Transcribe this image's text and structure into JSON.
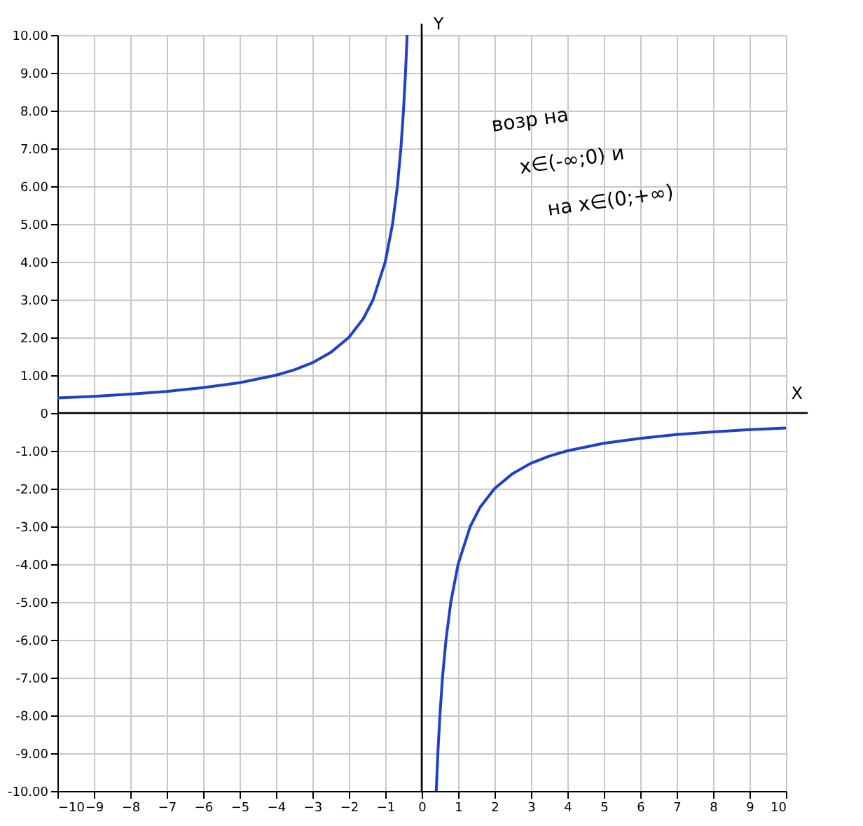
{
  "chart_data": {
    "type": "line",
    "xlabel": "X",
    "ylabel": "Y",
    "series": [
      {
        "color": "#2040c8",
        "x": [
          -10,
          -9,
          -8,
          -7,
          -6,
          -5,
          -4,
          -3.5,
          -3,
          -2.5,
          -2,
          -1.6,
          -1.333,
          -1,
          -0.8,
          -0.667,
          -0.571,
          -0.5,
          -0.444,
          -0.4
        ],
        "values": [
          0.4,
          0.44,
          0.5,
          0.57,
          0.67,
          0.8,
          1,
          1.14,
          1.33,
          1.6,
          2,
          2.5,
          3,
          4,
          5,
          6,
          7,
          8,
          9,
          10
        ]
      },
      {
        "color": "#2040c8",
        "x": [
          0.4,
          0.444,
          0.5,
          0.571,
          0.667,
          0.8,
          1,
          1.333,
          1.6,
          2,
          2.5,
          3,
          3.5,
          4,
          5,
          6,
          7,
          8,
          9,
          10
        ],
        "values": [
          -10,
          -9,
          -8,
          -7,
          -6,
          -5,
          -4,
          -3,
          -2.5,
          -2,
          -1.6,
          -1.33,
          -1.14,
          -1,
          -0.8,
          -0.67,
          -0.57,
          -0.5,
          -0.44,
          -0.4
        ]
      }
    ],
    "xlim": [
      -10,
      10
    ],
    "ylim": [
      -10,
      10
    ],
    "xticks": [
      -10,
      -9,
      -8,
      -7,
      -6,
      -5,
      -4,
      -3,
      -2,
      -1,
      0,
      1,
      2,
      3,
      4,
      5,
      6,
      7,
      8,
      9,
      10
    ],
    "yticks": [
      {
        "value": -10,
        "label": "-10.00"
      },
      {
        "value": -9,
        "label": "-9.00"
      },
      {
        "value": -8,
        "label": "-8.00"
      },
      {
        "value": -7,
        "label": "-7.00"
      },
      {
        "value": -6,
        "label": "-6.00"
      },
      {
        "value": -5,
        "label": "-5.00"
      },
      {
        "value": -4,
        "label": "-4.00"
      },
      {
        "value": -3,
        "label": "-3.00"
      },
      {
        "value": -2,
        "label": "-2.00"
      },
      {
        "value": -1,
        "label": "-1.00"
      },
      0,
      {
        "value": 1,
        "label": "1.00"
      },
      {
        "value": 2,
        "label": "2.00"
      },
      {
        "value": 3,
        "label": "3.00"
      },
      {
        "value": 4,
        "label": "4.00"
      },
      {
        "value": 5,
        "label": "5.00"
      },
      {
        "value": 6,
        "label": "6.00"
      },
      {
        "value": 7,
        "label": "7.00"
      },
      {
        "value": 8,
        "label": "8.00"
      },
      {
        "value": 9,
        "label": "9.00"
      },
      {
        "value": 10,
        "label": "10.00"
      }
    ],
    "grid": true,
    "marker": "none",
    "line_style": "solid",
    "annotations": [
      "возр на",
      "x∈(-∞;0) и",
      "на x∈(0;+∞)"
    ]
  }
}
